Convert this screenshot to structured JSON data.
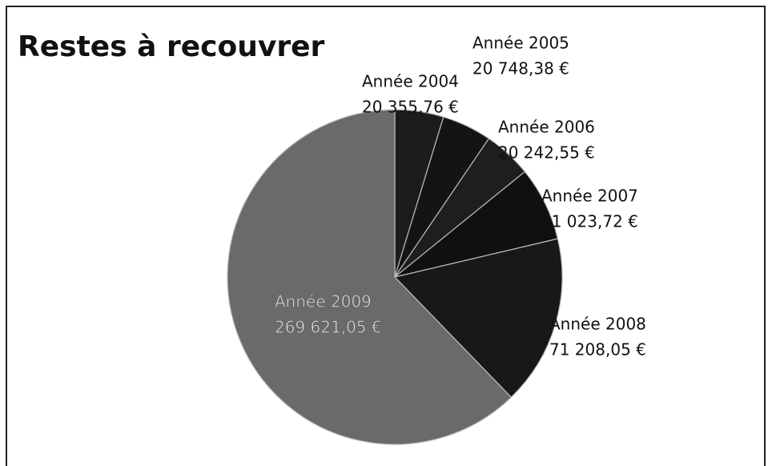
{
  "chart_data": {
    "type": "pie",
    "title": "Restes à recouvrer",
    "categories": [
      "Année 2004",
      "Année 2005",
      "Année 2006",
      "Année 2007",
      "Année 2008",
      "Année 2009"
    ],
    "values": [
      20355.76,
      20748.38,
      20242.55,
      31023.72,
      71208.05,
      269621.05
    ],
    "value_labels": [
      "20 355,76 €",
      "20 748,38 €",
      "20 242,55 €",
      "31 023,72 €",
      "71 208,05 €",
      "269 621,05 €"
    ],
    "colors": [
      "#1c1c1c",
      "#141414",
      "#1e1e1e",
      "#101010",
      "#181818",
      "#6a6a6a"
    ]
  }
}
